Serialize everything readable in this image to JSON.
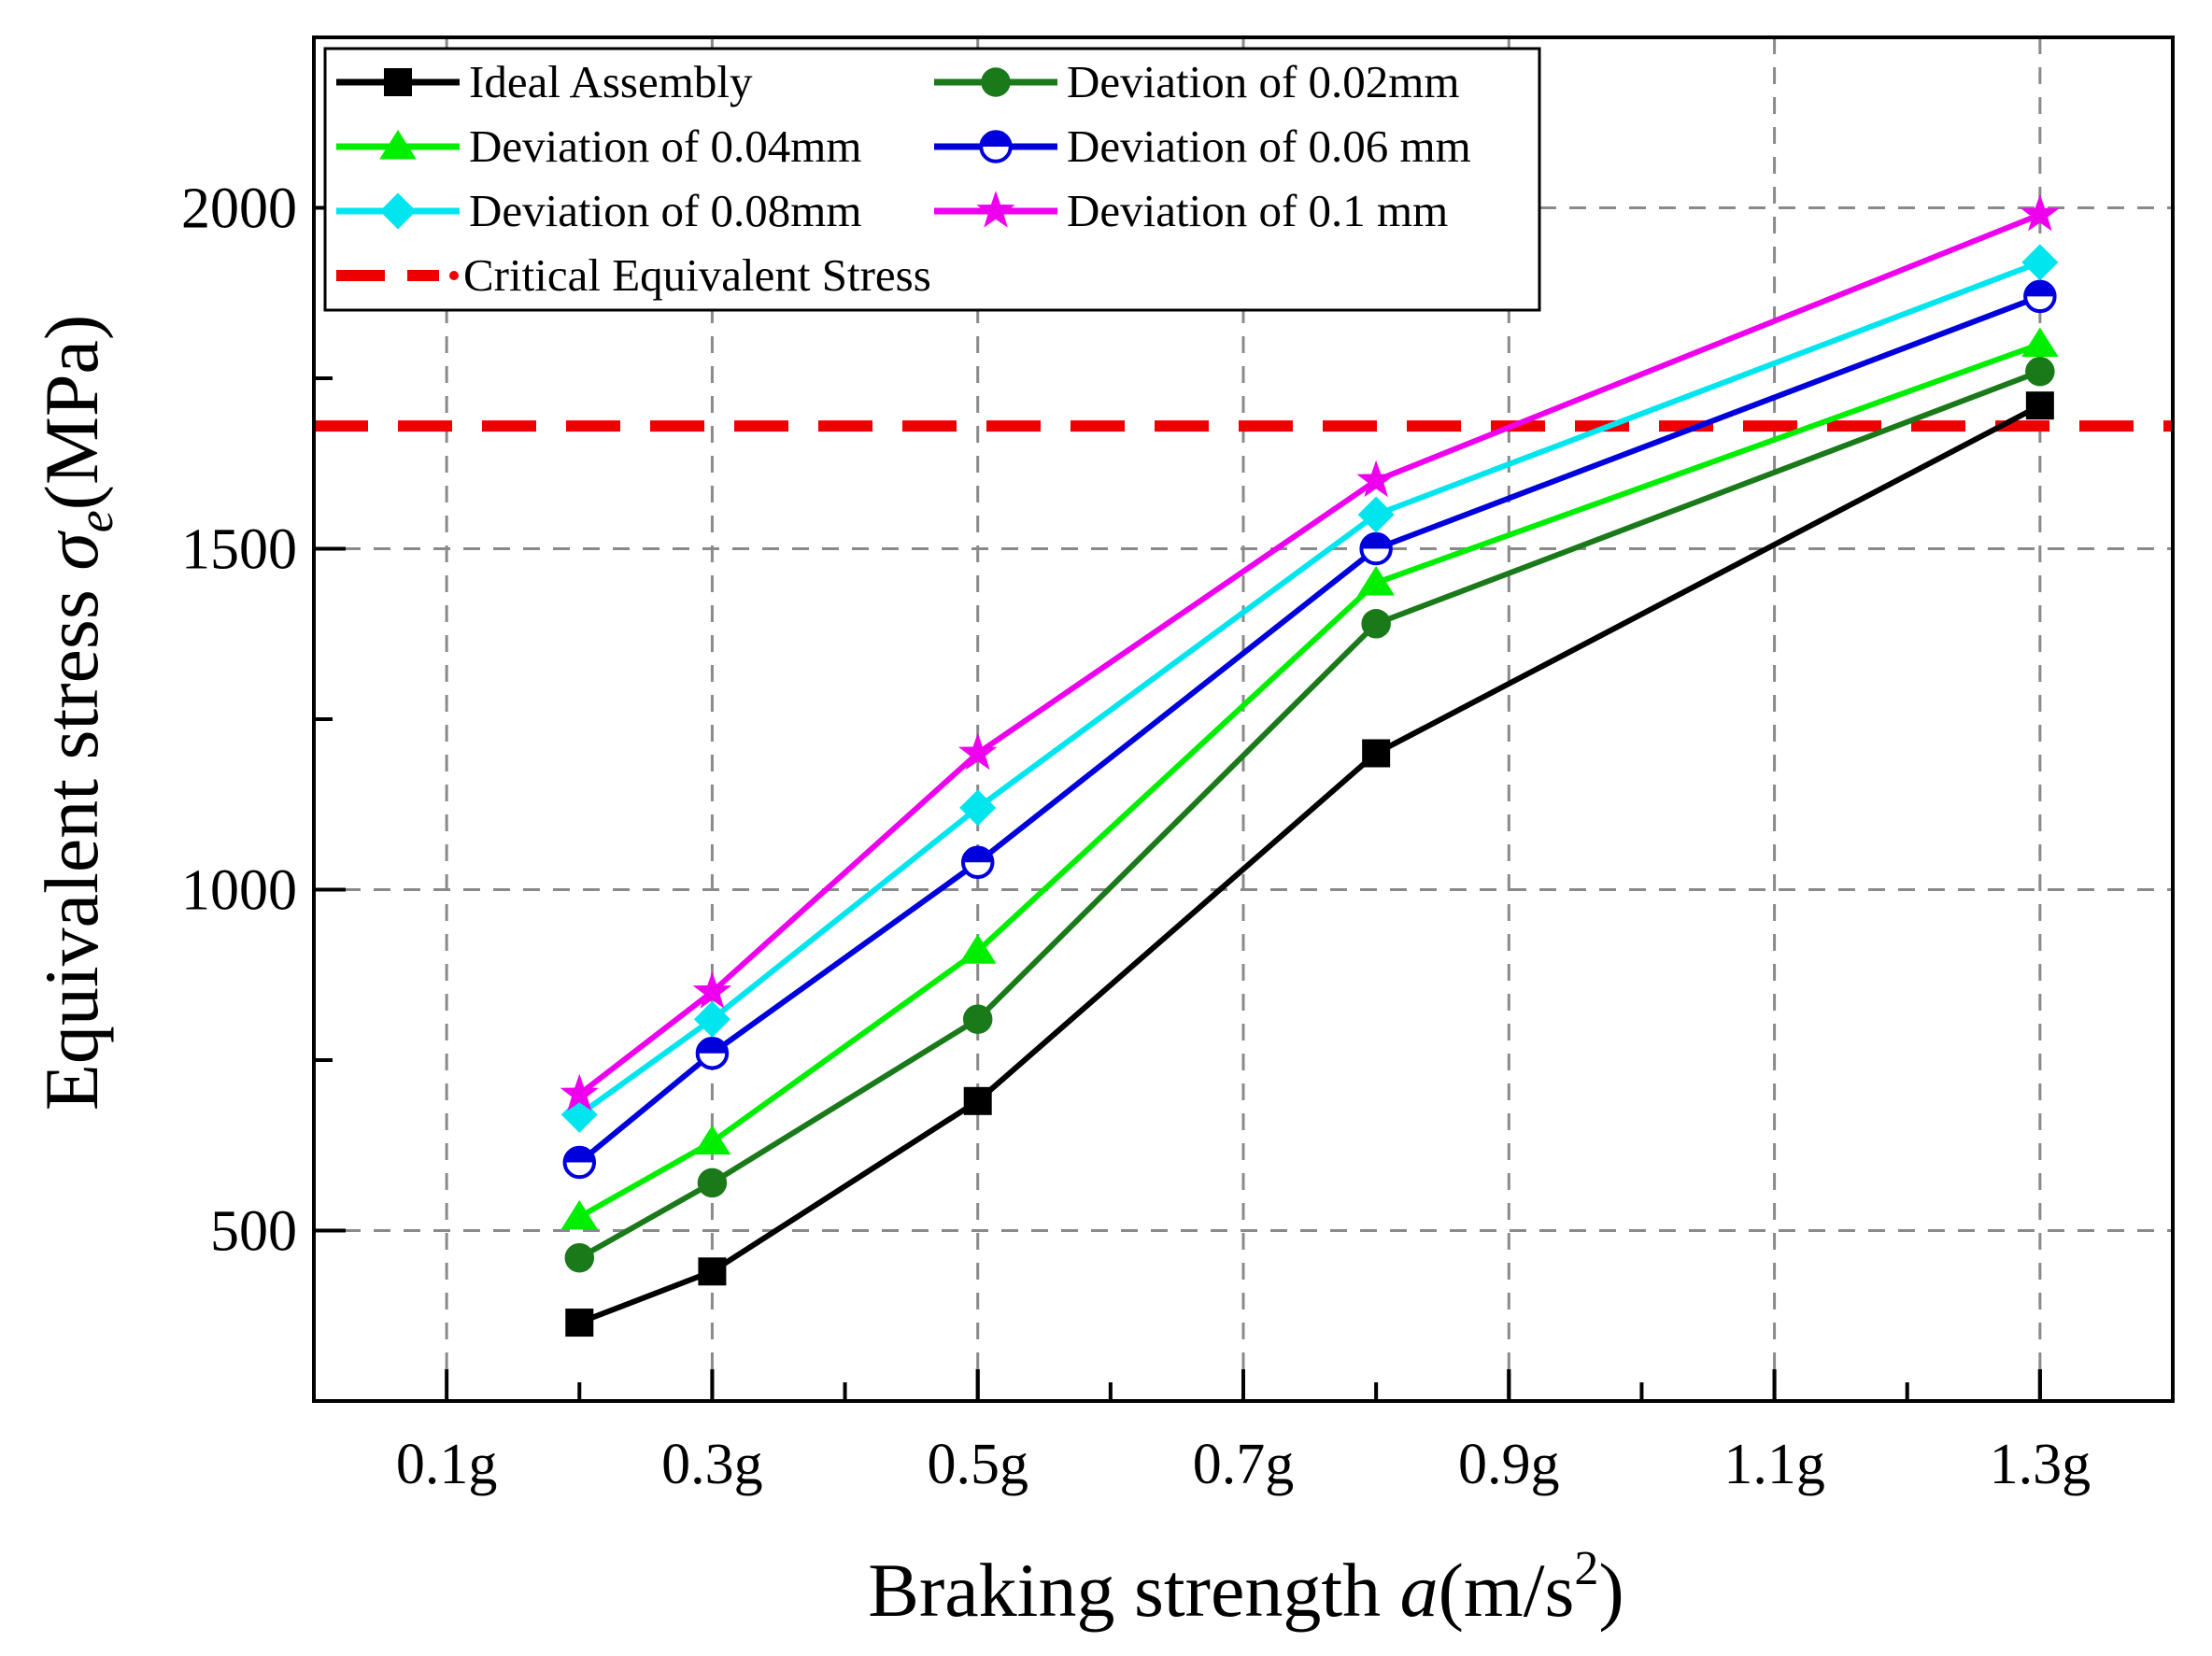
{
  "chart_data": {
    "type": "line",
    "title": "",
    "xlabel": {
      "prefix": "Braking strength ",
      "var": "a",
      "unit_open": "(m/s",
      "sup": "2",
      "unit_close": ")"
    },
    "ylabel": {
      "prefix": "Equivalent stress ",
      "var": "σ",
      "sub": "e",
      "unit": "(MPa)"
    },
    "xlim": [
      0,
      1.4
    ],
    "ylim": [
      250,
      2250
    ],
    "x_ticks": [
      {
        "value": 0.1,
        "label": "0.1g"
      },
      {
        "value": 0.3,
        "label": "0.3g"
      },
      {
        "value": 0.5,
        "label": "0.5g"
      },
      {
        "value": 0.7,
        "label": "0.7g"
      },
      {
        "value": 0.9,
        "label": "0.9g"
      },
      {
        "value": 1.1,
        "label": "1.1g"
      },
      {
        "value": 1.3,
        "label": "1.3g"
      }
    ],
    "y_ticks": [
      {
        "value": 500,
        "label": "500"
      },
      {
        "value": 1000,
        "label": "1000"
      },
      {
        "value": 1500,
        "label": "1500"
      },
      {
        "value": 2000,
        "label": "2000"
      }
    ],
    "grid": true,
    "legend_position": "top-left",
    "x": [
      0.2,
      0.3,
      0.5,
      0.8,
      1.3
    ],
    "series": [
      {
        "name": "Ideal Assembly",
        "color": "#000000",
        "marker": "square",
        "values": [
          365,
          440,
          690,
          1200,
          1710
        ]
      },
      {
        "name": "Deviation of 0.02mm",
        "color": "#1a7a1a",
        "marker": "circle",
        "values": [
          460,
          570,
          810,
          1390,
          1760
        ]
      },
      {
        "name": "Deviation of 0.04mm",
        "color": "#00ee00",
        "marker": "triangle",
        "values": [
          520,
          630,
          910,
          1450,
          1800
        ]
      },
      {
        "name": "Deviation of 0.06 mm",
        "color": "#0000dd",
        "marker": "half-circle",
        "values": [
          600,
          760,
          1040,
          1500,
          1870
        ]
      },
      {
        "name": "Deviation of 0.08mm",
        "color": "#00e5ee",
        "marker": "diamond",
        "values": [
          670,
          810,
          1120,
          1550,
          1920
        ]
      },
      {
        "name": "Deviation of 0.1 mm",
        "color": "#ee00ee",
        "marker": "star",
        "values": [
          700,
          850,
          1200,
          1600,
          1990
        ]
      }
    ],
    "reference_line": {
      "name": "Critical Equivalent Stress",
      "color": "#ee0000",
      "style": "dashed",
      "value": 1680
    }
  }
}
